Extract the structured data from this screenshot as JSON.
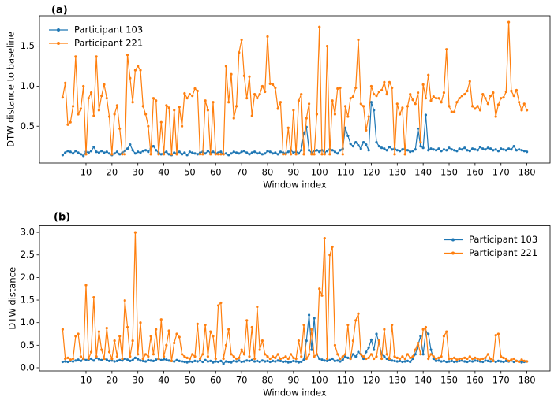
{
  "chart_data": [
    {
      "type": "line",
      "title": "(a)",
      "xlabel": "Window index",
      "ylabel": "DTW distance to baseline",
      "xlim": [
        -7.95,
        188.95
      ],
      "ylim": [
        0.04,
        1.88
      ],
      "xticks": [
        10,
        20,
        30,
        40,
        50,
        60,
        70,
        80,
        90,
        100,
        110,
        120,
        130,
        140,
        150,
        160,
        170,
        180
      ],
      "yticks": [
        0.5,
        {
          "value": 1,
          "label": "1.0"
        },
        1.5
      ],
      "legend": "upper left",
      "x": [
        1,
        2,
        3,
        4,
        5,
        6,
        7,
        8,
        9,
        10,
        11,
        12,
        13,
        14,
        15,
        16,
        17,
        18,
        19,
        20,
        21,
        22,
        23,
        24,
        25,
        26,
        27,
        28,
        29,
        30,
        31,
        32,
        33,
        34,
        35,
        36,
        37,
        38,
        39,
        40,
        41,
        42,
        43,
        44,
        45,
        46,
        47,
        48,
        49,
        50,
        51,
        52,
        53,
        54,
        55,
        56,
        57,
        58,
        59,
        60,
        61,
        62,
        63,
        64,
        65,
        66,
        67,
        68,
        69,
        70,
        71,
        72,
        73,
        74,
        75,
        76,
        77,
        78,
        79,
        80,
        81,
        82,
        83,
        84,
        85,
        86,
        87,
        88,
        89,
        90,
        91,
        92,
        93,
        94,
        95,
        96,
        97,
        98,
        99,
        100,
        101,
        102,
        103,
        104,
        105,
        106,
        107,
        108,
        109,
        110,
        111,
        112,
        113,
        114,
        115,
        116,
        117,
        118,
        119,
        120,
        121,
        122,
        123,
        124,
        125,
        126,
        127,
        128,
        129,
        130,
        131,
        132,
        133,
        134,
        135,
        136,
        137,
        138,
        139,
        140,
        141,
        142,
        143,
        144,
        145,
        146,
        147,
        148,
        149,
        150,
        151,
        152,
        153,
        154,
        155,
        156,
        157,
        158,
        159,
        160,
        161,
        162,
        163,
        164,
        165,
        166,
        167,
        168,
        169,
        170,
        171,
        172,
        173,
        174,
        175,
        176,
        177,
        178,
        179,
        180
      ],
      "series": [
        {
          "name": "Participant 103",
          "color": "#1f77b4",
          "values": [
            0.14,
            0.17,
            0.19,
            0.18,
            0.16,
            0.19,
            0.17,
            0.15,
            0.13,
            0.18,
            0.17,
            0.19,
            0.24,
            0.18,
            0.17,
            0.19,
            0.17,
            0.18,
            0.16,
            0.14,
            0.16,
            0.18,
            0.15,
            0.17,
            0.19,
            0.22,
            0.27,
            0.2,
            0.16,
            0.18,
            0.17,
            0.19,
            0.2,
            0.18,
            0.22,
            0.25,
            0.2,
            0.17,
            0.15,
            0.17,
            0.18,
            0.15,
            0.14,
            0.17,
            0.16,
            0.18,
            0.15,
            0.17,
            0.14,
            0.18,
            0.17,
            0.16,
            0.15,
            0.17,
            0.18,
            0.16,
            0.19,
            0.17,
            0.18,
            0.16,
            0.17,
            0.18,
            0.15,
            0.16,
            0.14,
            0.16,
            0.18,
            0.17,
            0.16,
            0.18,
            0.19,
            0.17,
            0.15,
            0.17,
            0.18,
            0.16,
            0.17,
            0.15,
            0.16,
            0.19,
            0.18,
            0.16,
            0.17,
            0.15,
            0.18,
            0.17,
            0.16,
            0.18,
            0.2,
            0.17,
            0.18,
            0.16,
            0.2,
            0.41,
            0.49,
            0.2,
            0.17,
            0.19,
            0.2,
            0.18,
            0.2,
            0.17,
            0.19,
            0.21,
            0.2,
            0.18,
            0.16,
            0.2,
            0.22,
            0.48,
            0.38,
            0.28,
            0.25,
            0.3,
            0.26,
            0.22,
            0.3,
            0.27,
            0.2,
            0.8,
            0.7,
            0.3,
            0.25,
            0.23,
            0.22,
            0.2,
            0.24,
            0.21,
            0.22,
            0.2,
            0.19,
            0.21,
            0.22,
            0.2,
            0.18,
            0.19,
            0.21,
            0.47,
            0.25,
            0.23,
            0.64,
            0.2,
            0.22,
            0.21,
            0.2,
            0.22,
            0.19,
            0.21,
            0.2,
            0.23,
            0.21,
            0.2,
            0.19,
            0.22,
            0.21,
            0.23,
            0.2,
            0.19,
            0.22,
            0.21,
            0.2,
            0.24,
            0.22,
            0.21,
            0.23,
            0.22,
            0.2,
            0.21,
            0.19,
            0.22,
            0.21,
            0.2,
            0.22,
            0.21,
            0.25,
            0.2,
            0.21,
            0.2,
            0.19,
            0.18
          ]
        },
        {
          "name": "Participant 221",
          "color": "#ff7f0e",
          "values": [
            0.86,
            1.04,
            0.52,
            0.55,
            0.75,
            1.37,
            0.65,
            0.72,
            1.0,
            0.15,
            0.85,
            0.92,
            0.63,
            1.37,
            0.7,
            0.88,
            1.02,
            0.85,
            0.62,
            0.15,
            0.65,
            0.76,
            0.47,
            0.15,
            0.15,
            1.39,
            1.1,
            0.8,
            1.2,
            1.25,
            1.2,
            0.75,
            0.65,
            0.5,
            0.15,
            0.85,
            0.82,
            0.15,
            0.55,
            0.15,
            0.76,
            0.73,
            0.15,
            0.7,
            0.15,
            0.74,
            0.5,
            0.91,
            0.85,
            0.9,
            0.88,
            0.97,
            0.94,
            0.15,
            0.15,
            0.82,
            0.7,
            0.15,
            0.8,
            0.15,
            0.15,
            0.15,
            0.15,
            1.25,
            0.8,
            1.15,
            0.6,
            0.75,
            1.42,
            1.58,
            1.13,
            0.85,
            1.12,
            0.63,
            0.9,
            0.85,
            0.9,
            1.0,
            0.93,
            1.62,
            1.03,
            1.02,
            0.98,
            0.72,
            0.8,
            0.15,
            0.15,
            0.48,
            0.15,
            0.7,
            0.15,
            0.82,
            0.9,
            0.15,
            0.6,
            0.78,
            0.15,
            0.15,
            0.65,
            1.74,
            0.15,
            0.15,
            1.5,
            0.15,
            0.82,
            0.65,
            0.97,
            0.98,
            0.15,
            0.75,
            0.62,
            0.85,
            0.87,
            0.98,
            1.58,
            0.78,
            0.75,
            0.45,
            0.62,
            1.0,
            0.9,
            0.88,
            0.93,
            0.95,
            1.05,
            0.9,
            1.05,
            0.98,
            0.15,
            0.78,
            0.65,
            0.73,
            0.15,
            0.75,
            0.9,
            0.83,
            0.78,
            0.92,
            0.3,
            1.02,
            0.85,
            1.14,
            0.82,
            0.87,
            0.85,
            0.85,
            0.8,
            0.92,
            1.46,
            0.75,
            0.68,
            0.68,
            0.8,
            0.85,
            0.88,
            0.9,
            0.94,
            1.06,
            0.75,
            0.72,
            0.75,
            0.7,
            0.9,
            0.85,
            0.78,
            0.88,
            0.92,
            0.62,
            0.77,
            0.85,
            0.86,
            0.93,
            1.8,
            0.94,
            0.88,
            0.95,
            0.8,
            0.7,
            0.78,
            0.7
          ]
        }
      ]
    },
    {
      "type": "line",
      "title": "(b)",
      "xlabel": "Window index",
      "ylabel": "DTW distance",
      "xlim": [
        -7.95,
        188.95
      ],
      "ylim": [
        -0.07,
        3.15
      ],
      "xticks": [
        10,
        20,
        30,
        40,
        50,
        60,
        70,
        80,
        90,
        100,
        110,
        120,
        130,
        140,
        150,
        160,
        170,
        180
      ],
      "yticks": [
        {
          "value": 0,
          "label": "0.0"
        },
        0.5,
        {
          "value": 1,
          "label": "1.0"
        },
        1.5,
        {
          "value": 2,
          "label": "2.0"
        },
        2.5,
        {
          "value": 3,
          "label": "3.0"
        }
      ],
      "legend": "upper right",
      "x": [
        1,
        2,
        3,
        4,
        5,
        6,
        7,
        8,
        9,
        10,
        11,
        12,
        13,
        14,
        15,
        16,
        17,
        18,
        19,
        20,
        21,
        22,
        23,
        24,
        25,
        26,
        27,
        28,
        29,
        30,
        31,
        32,
        33,
        34,
        35,
        36,
        37,
        38,
        39,
        40,
        41,
        42,
        43,
        44,
        45,
        46,
        47,
        48,
        49,
        50,
        51,
        52,
        53,
        54,
        55,
        56,
        57,
        58,
        59,
        60,
        61,
        62,
        63,
        64,
        65,
        66,
        67,
        68,
        69,
        70,
        71,
        72,
        73,
        74,
        75,
        76,
        77,
        78,
        79,
        80,
        81,
        82,
        83,
        84,
        85,
        86,
        87,
        88,
        89,
        90,
        91,
        92,
        93,
        94,
        95,
        96,
        97,
        98,
        99,
        100,
        101,
        102,
        103,
        104,
        105,
        106,
        107,
        108,
        109,
        110,
        111,
        112,
        113,
        114,
        115,
        116,
        117,
        118,
        119,
        120,
        121,
        122,
        123,
        124,
        125,
        126,
        127,
        128,
        129,
        130,
        131,
        132,
        133,
        134,
        135,
        136,
        137,
        138,
        139,
        140,
        141,
        142,
        143,
        144,
        145,
        146,
        147,
        148,
        149,
        150,
        151,
        152,
        153,
        154,
        155,
        156,
        157,
        158,
        159,
        160,
        161,
        162,
        163,
        164,
        165,
        166,
        167,
        168,
        169,
        170,
        171,
        172,
        173,
        174,
        175,
        176,
        177,
        178,
        179,
        180
      ],
      "series": [
        {
          "name": "Participant 103",
          "color": "#1f77b4",
          "values": [
            0.13,
            0.14,
            0.13,
            0.15,
            0.14,
            0.16,
            0.18,
            0.15,
            0.2,
            0.17,
            0.18,
            0.2,
            0.16,
            0.22,
            0.19,
            0.17,
            0.2,
            0.18,
            0.15,
            0.16,
            0.14,
            0.15,
            0.17,
            0.16,
            0.2,
            0.18,
            0.15,
            0.17,
            0.22,
            0.19,
            0.16,
            0.15,
            0.14,
            0.17,
            0.16,
            0.15,
            0.18,
            0.2,
            0.17,
            0.19,
            0.18,
            0.16,
            0.15,
            0.14,
            0.17,
            0.15,
            0.14,
            0.13,
            0.12,
            0.14,
            0.13,
            0.15,
            0.14,
            0.16,
            0.13,
            0.17,
            0.14,
            0.15,
            0.12,
            0.14,
            0.13,
            0.15,
            0.09,
            0.14,
            0.13,
            0.12,
            0.15,
            0.14,
            0.16,
            0.13,
            0.14,
            0.16,
            0.15,
            0.17,
            0.14,
            0.15,
            0.13,
            0.16,
            0.14,
            0.15,
            0.13,
            0.15,
            0.14,
            0.16,
            0.15,
            0.13,
            0.14,
            0.12,
            0.13,
            0.15,
            0.14,
            0.12,
            0.13,
            0.18,
            0.6,
            1.17,
            0.4,
            1.1,
            0.3,
            0.2,
            0.18,
            0.16,
            0.15,
            0.17,
            0.2,
            0.15,
            0.16,
            0.14,
            0.18,
            0.25,
            0.22,
            0.2,
            0.3,
            0.25,
            0.35,
            0.3,
            0.2,
            0.35,
            0.45,
            0.62,
            0.4,
            0.75,
            0.55,
            0.3,
            0.25,
            0.2,
            0.18,
            0.16,
            0.15,
            0.14,
            0.15,
            0.13,
            0.14,
            0.15,
            0.13,
            0.2,
            0.3,
            0.5,
            0.7,
            0.3,
            0.8,
            0.75,
            0.4,
            0.2,
            0.15,
            0.16,
            0.14,
            0.15,
            0.13,
            0.14,
            0.15,
            0.13,
            0.14,
            0.15,
            0.16,
            0.14,
            0.13,
            0.15,
            0.14,
            0.16,
            0.15,
            0.14,
            0.13,
            0.16,
            0.15,
            0.14,
            0.16,
            0.13,
            0.15,
            0.14,
            0.13,
            0.15,
            0.14,
            0.16,
            0.13,
            0.15,
            0.14,
            0.12,
            0.13,
            0.14
          ]
        },
        {
          "name": "Participant 221",
          "color": "#ff7f0e",
          "values": [
            0.85,
            0.2,
            0.22,
            0.18,
            0.2,
            0.7,
            0.75,
            0.25,
            0.2,
            1.83,
            0.2,
            0.35,
            1.56,
            0.25,
            0.8,
            0.4,
            0.2,
            0.88,
            0.35,
            0.2,
            0.6,
            0.25,
            0.7,
            0.2,
            1.49,
            0.9,
            0.25,
            0.6,
            3.0,
            0.3,
            1.0,
            0.2,
            0.3,
            0.25,
            0.7,
            0.3,
            0.85,
            0.2,
            1.07,
            0.25,
            0.5,
            0.82,
            0.15,
            0.55,
            0.75,
            0.68,
            0.3,
            0.25,
            0.22,
            0.2,
            0.3,
            0.25,
            0.97,
            0.2,
            0.3,
            0.95,
            0.25,
            0.8,
            0.7,
            0.2,
            1.38,
            1.44,
            0.2,
            0.5,
            0.85,
            0.3,
            0.25,
            0.2,
            0.22,
            0.4,
            0.3,
            1.05,
            0.25,
            0.9,
            0.2,
            1.35,
            0.4,
            0.6,
            0.3,
            0.25,
            0.2,
            0.25,
            0.22,
            0.3,
            0.2,
            0.22,
            0.25,
            0.2,
            0.3,
            0.22,
            0.2,
            0.6,
            0.25,
            0.95,
            0.2,
            0.3,
            0.85,
            0.25,
            0.3,
            1.75,
            1.6,
            2.87,
            0.2,
            2.5,
            2.68,
            0.5,
            0.3,
            0.2,
            0.25,
            0.3,
            0.95,
            0.2,
            0.6,
            1.05,
            1.2,
            0.3,
            0.25,
            0.2,
            0.22,
            0.3,
            0.2,
            0.25,
            0.6,
            0.2,
            0.85,
            0.3,
            0.2,
            0.95,
            0.25,
            0.22,
            0.2,
            0.25,
            0.2,
            0.3,
            0.22,
            0.25,
            0.4,
            0.55,
            0.3,
            0.85,
            0.9,
            0.2,
            0.3,
            0.25,
            0.2,
            0.22,
            0.25,
            0.7,
            0.8,
            0.2,
            0.2,
            0.22,
            0.18,
            0.2,
            0.2,
            0.22,
            0.2,
            0.25,
            0.2,
            0.22,
            0.2,
            0.18,
            0.2,
            0.22,
            0.3,
            0.2,
            0.15,
            0.72,
            0.75,
            0.25,
            0.22,
            0.2,
            0.15,
            0.18,
            0.2,
            0.15,
            0.13,
            0.18,
            0.15,
            0.14
          ]
        }
      ]
    }
  ]
}
